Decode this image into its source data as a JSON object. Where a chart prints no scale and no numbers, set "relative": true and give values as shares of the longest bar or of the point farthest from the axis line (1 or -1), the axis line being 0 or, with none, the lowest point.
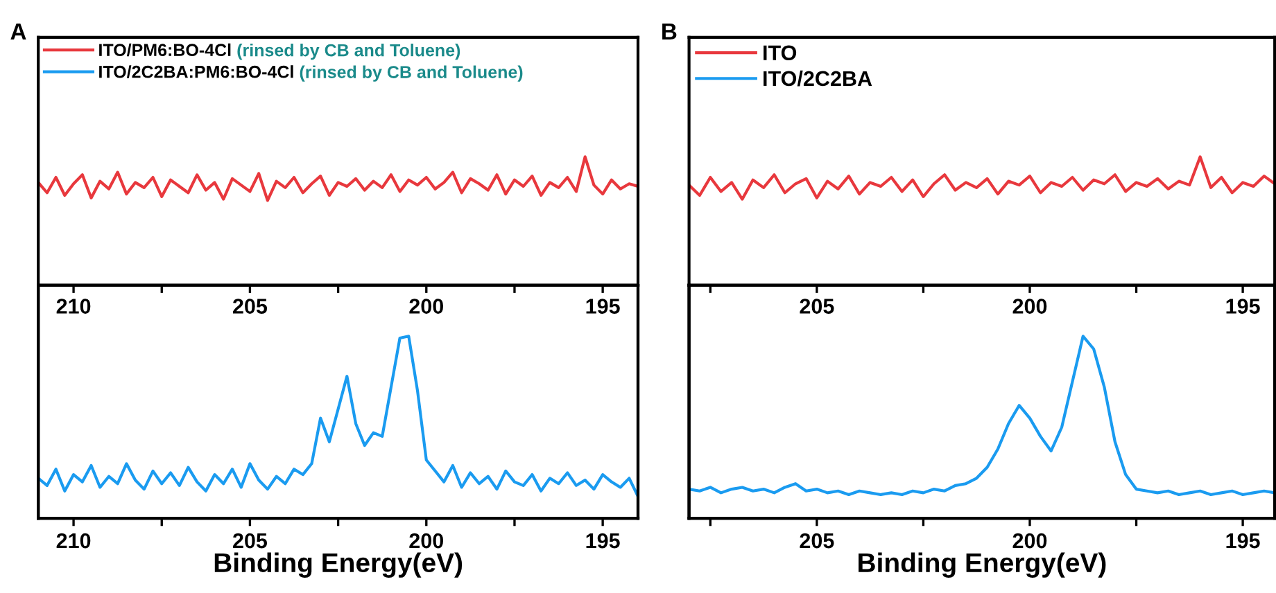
{
  "chart_data": [
    {
      "type": "line",
      "relative": true,
      "xlim": [
        211,
        194
      ],
      "legend": "top left",
      "annotations": [
        "A",
        "(rinsed by CB and Toluene)"
      ],
      "x": [
        211,
        210.75,
        210.5,
        210.25,
        210,
        209.75,
        209.5,
        209.25,
        209,
        208.75,
        208.5,
        208.25,
        208,
        207.75,
        207.5,
        207.25,
        207,
        206.75,
        206.5,
        206.25,
        206,
        205.75,
        205.5,
        205.25,
        205,
        204.75,
        204.5,
        204.25,
        204,
        203.75,
        203.5,
        203.25,
        203,
        202.75,
        202.5,
        202.25,
        202,
        201.75,
        201.5,
        201.25,
        201,
        200.75,
        200.5,
        200.25,
        200,
        199.75,
        199.5,
        199.25,
        199,
        198.75,
        198.5,
        198.25,
        198,
        197.75,
        197.5,
        197.25,
        197,
        196.75,
        196.5,
        196.25,
        196,
        195.75,
        195.5,
        195.25,
        195,
        194.75,
        194.5,
        194.25,
        194
      ],
      "series": [
        {
          "name": "ITO/PM6:BO-4Cl",
          "color": "#e8383d",
          "values": [
            0.8,
            0.72,
            0.84,
            0.7,
            0.79,
            0.86,
            0.68,
            0.81,
            0.75,
            0.88,
            0.71,
            0.8,
            0.76,
            0.84,
            0.69,
            0.82,
            0.77,
            0.72,
            0.86,
            0.74,
            0.8,
            0.67,
            0.83,
            0.78,
            0.73,
            0.87,
            0.66,
            0.81,
            0.76,
            0.84,
            0.72,
            0.79,
            0.85,
            0.7,
            0.8,
            0.77,
            0.83,
            0.74,
            0.81,
            0.76,
            0.86,
            0.73,
            0.82,
            0.78,
            0.84,
            0.75,
            0.8,
            0.88,
            0.72,
            0.83,
            0.79,
            0.74,
            0.86,
            0.71,
            0.82,
            0.77,
            0.85,
            0.7,
            0.8,
            0.76,
            0.84,
            0.73,
            1.0,
            0.78,
            0.71,
            0.82,
            0.75,
            0.79,
            0.77
          ]
        }
      ]
    },
    {
      "type": "line",
      "relative": true,
      "xlim": [
        211,
        194
      ],
      "xlabel": "Binding Energy(eV)",
      "legend": "top left",
      "annotations": [
        "(rinsed by CB and Toluene)"
      ],
      "xticks": [
        210,
        {
          "value": 207.5,
          "label": null
        },
        205,
        {
          "value": 202.5,
          "label": null
        },
        200,
        {
          "value": 197.5,
          "label": null
        },
        195
      ],
      "x2lim": [
        211,
        194
      ],
      "x2ticks": [
        210,
        {
          "value": 207.5,
          "label": null
        },
        205,
        {
          "value": 202.5,
          "label": null
        },
        200,
        {
          "value": 197.5,
          "label": null
        },
        195
      ],
      "x": [
        211,
        210.75,
        210.5,
        210.25,
        210,
        209.75,
        209.5,
        209.25,
        209,
        208.75,
        208.5,
        208.25,
        208,
        207.75,
        207.5,
        207.25,
        207,
        206.75,
        206.5,
        206.25,
        206,
        205.75,
        205.5,
        205.25,
        205,
        204.75,
        204.5,
        204.25,
        204,
        203.75,
        203.5,
        203.25,
        203,
        202.75,
        202.5,
        202.25,
        202,
        201.75,
        201.5,
        201.25,
        201,
        200.75,
        200.5,
        200.25,
        200,
        199.75,
        199.5,
        199.25,
        199,
        198.75,
        198.5,
        198.25,
        198,
        197.75,
        197.5,
        197.25,
        197,
        196.75,
        196.5,
        196.25,
        196,
        195.75,
        195.5,
        195.25,
        195,
        194.75,
        194.5,
        194.25,
        194
      ],
      "series": [
        {
          "name": "ITO/2C2BA:PM6:BO-4Cl",
          "color": "#1a9bf0",
          "values": [
            0.22,
            0.18,
            0.27,
            0.15,
            0.24,
            0.2,
            0.29,
            0.17,
            0.23,
            0.19,
            0.3,
            0.21,
            0.16,
            0.26,
            0.19,
            0.25,
            0.18,
            0.28,
            0.2,
            0.15,
            0.24,
            0.19,
            0.27,
            0.17,
            0.3,
            0.21,
            0.16,
            0.23,
            0.19,
            0.27,
            0.24,
            0.3,
            0.55,
            0.42,
            0.6,
            0.78,
            0.52,
            0.4,
            0.47,
            0.45,
            0.72,
            0.99,
            1.0,
            0.7,
            0.32,
            0.26,
            0.2,
            0.29,
            0.17,
            0.25,
            0.19,
            0.23,
            0.16,
            0.26,
            0.2,
            0.18,
            0.24,
            0.15,
            0.22,
            0.19,
            0.25,
            0.18,
            0.21,
            0.16,
            0.24,
            0.2,
            0.17,
            0.22,
            0.12
          ]
        }
      ]
    },
    {
      "type": "line",
      "relative": true,
      "xlim": [
        208,
        194.25
      ],
      "legend": "top left",
      "annotations": [
        "B"
      ],
      "x": [
        208,
        207.75,
        207.5,
        207.25,
        207,
        206.75,
        206.5,
        206.25,
        206,
        205.75,
        205.5,
        205.25,
        205,
        204.75,
        204.5,
        204.25,
        204,
        203.75,
        203.5,
        203.25,
        203,
        202.75,
        202.5,
        202.25,
        202,
        201.75,
        201.5,
        201.25,
        201,
        200.75,
        200.5,
        200.25,
        200,
        199.75,
        199.5,
        199.25,
        199,
        198.75,
        198.5,
        198.25,
        198,
        197.75,
        197.5,
        197.25,
        197,
        196.75,
        196.5,
        196.25,
        196,
        195.75,
        195.5,
        195.25,
        195,
        194.75,
        194.5,
        194.25
      ],
      "series": [
        {
          "name": "ITO",
          "color": "#e8383d",
          "values": [
            0.78,
            0.7,
            0.84,
            0.73,
            0.8,
            0.67,
            0.82,
            0.76,
            0.86,
            0.72,
            0.79,
            0.83,
            0.68,
            0.81,
            0.75,
            0.85,
            0.71,
            0.8,
            0.77,
            0.84,
            0.73,
            0.82,
            0.69,
            0.79,
            0.86,
            0.74,
            0.8,
            0.76,
            0.83,
            0.71,
            0.81,
            0.78,
            0.85,
            0.72,
            0.8,
            0.77,
            0.84,
            0.74,
            0.82,
            0.79,
            0.86,
            0.73,
            0.8,
            0.77,
            0.83,
            0.75,
            0.81,
            0.78,
            1.0,
            0.76,
            0.84,
            0.72,
            0.8,
            0.77,
            0.85,
            0.79
          ]
        }
      ]
    },
    {
      "type": "line",
      "relative": true,
      "xlim": [
        208,
        194.25
      ],
      "xlabel": "Binding Energy(eV)",
      "legend": "top left",
      "xticks": [
        {
          "value": 207.5,
          "label": null
        },
        205,
        {
          "value": 202.5,
          "label": null
        },
        200,
        {
          "value": 197.5,
          "label": null
        },
        195
      ],
      "x2lim": [
        208,
        194.25
      ],
      "x2ticks": [
        {
          "value": 207.5,
          "label": null
        },
        205,
        {
          "value": 202.5,
          "label": null
        },
        200,
        {
          "value": 197.5,
          "label": null
        },
        195
      ],
      "x": [
        208,
        207.75,
        207.5,
        207.25,
        207,
        206.75,
        206.5,
        206.25,
        206,
        205.75,
        205.5,
        205.25,
        205,
        204.75,
        204.5,
        204.25,
        204,
        203.75,
        203.5,
        203.25,
        203,
        202.75,
        202.5,
        202.25,
        202,
        201.75,
        201.5,
        201.25,
        201,
        200.75,
        200.5,
        200.25,
        200,
        199.75,
        199.5,
        199.25,
        199,
        198.75,
        198.5,
        198.25,
        198,
        197.75,
        197.5,
        197.25,
        197,
        196.75,
        196.5,
        196.25,
        196,
        195.75,
        195.5,
        195.25,
        195,
        194.75,
        194.5,
        194.25
      ],
      "series": [
        {
          "name": "ITO/2C2BA",
          "color": "#1a9bf0",
          "values": [
            0.16,
            0.15,
            0.17,
            0.14,
            0.16,
            0.17,
            0.15,
            0.16,
            0.14,
            0.17,
            0.19,
            0.15,
            0.16,
            0.14,
            0.15,
            0.13,
            0.15,
            0.14,
            0.13,
            0.14,
            0.13,
            0.15,
            0.14,
            0.16,
            0.15,
            0.18,
            0.19,
            0.22,
            0.28,
            0.38,
            0.52,
            0.62,
            0.55,
            0.45,
            0.37,
            0.5,
            0.75,
            1.0,
            0.93,
            0.72,
            0.42,
            0.24,
            0.16,
            0.15,
            0.14,
            0.15,
            0.13,
            0.14,
            0.15,
            0.13,
            0.14,
            0.15,
            0.13,
            0.14,
            0.15,
            0.14
          ]
        }
      ]
    }
  ]
}
